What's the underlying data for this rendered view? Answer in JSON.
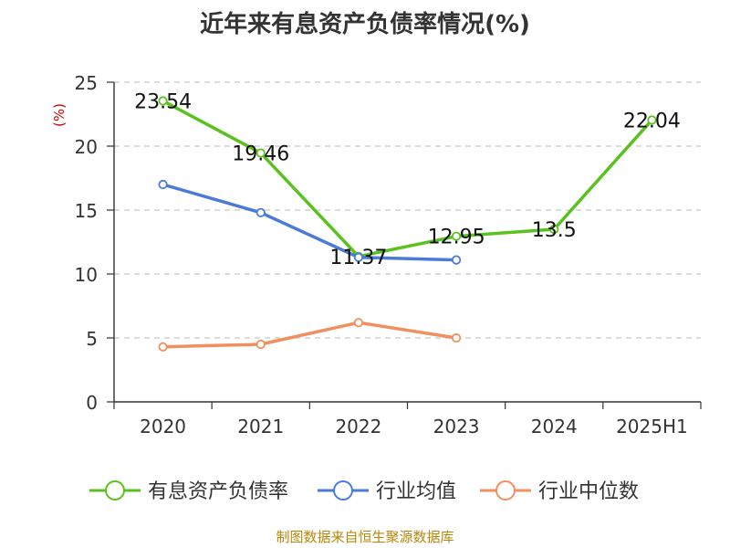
{
  "title": "近年来有息资产负债率情况(%)",
  "source": "制图数据来自恒生聚源数据库",
  "colors": {
    "series_main": "#5ac21e",
    "series_avg": "#4a7bd9",
    "series_median": "#f28f5f",
    "ylabel": "#cc0000",
    "source": "#b8860b"
  },
  "chart_data": {
    "type": "line",
    "title": "近年来有息资产负债率情况(%)",
    "ylabel": "(%)",
    "xlabel": "",
    "categories": [
      "2020",
      "2021",
      "2022",
      "2023",
      "2024",
      "2025H1"
    ],
    "ylim": [
      0,
      25
    ],
    "yticks": [
      0,
      5,
      10,
      15,
      20,
      25
    ],
    "grid": true,
    "legend_position": "bottom",
    "series": [
      {
        "name": "有息资产负债率",
        "color": "#5ac21e",
        "values": [
          23.54,
          19.46,
          11.37,
          12.95,
          13.5,
          22.04
        ],
        "data_labels": true
      },
      {
        "name": "行业均值",
        "color": "#4a7bd9",
        "values": [
          17.0,
          14.8,
          11.3,
          11.1,
          null,
          null
        ],
        "data_labels": false
      },
      {
        "name": "行业中位数",
        "color": "#f28f5f",
        "values": [
          4.3,
          4.5,
          6.2,
          5.0,
          null,
          null
        ],
        "data_labels": false
      }
    ]
  }
}
